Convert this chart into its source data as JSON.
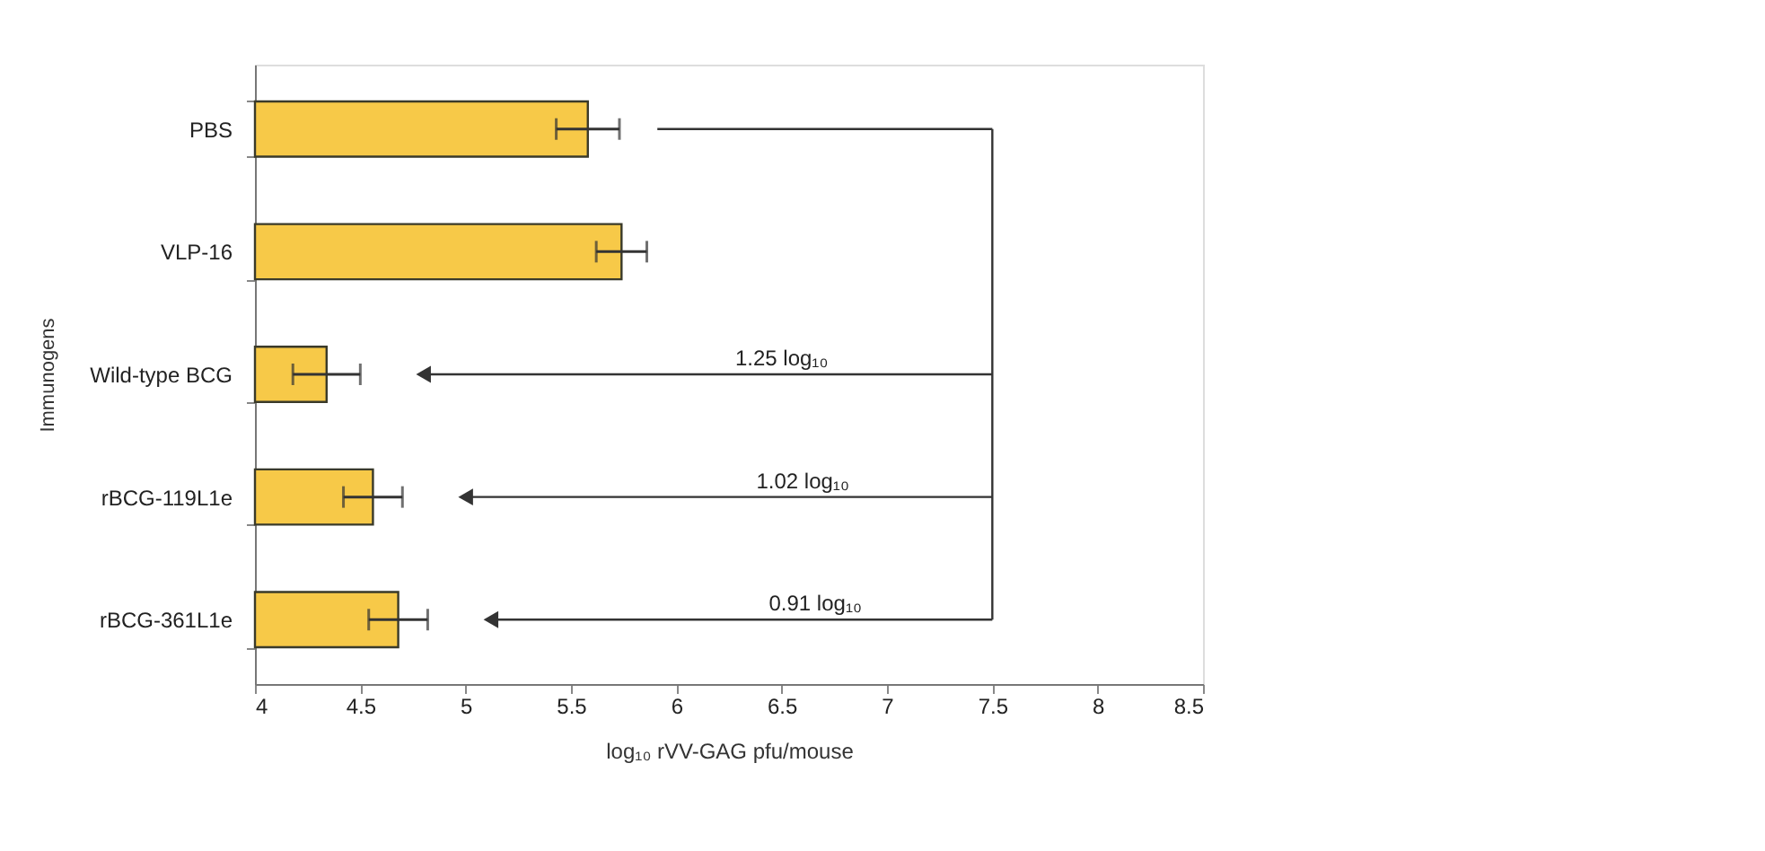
{
  "chart_data": {
    "type": "bar",
    "orientation": "horizontal",
    "categories": [
      "PBS",
      "VLP-16",
      "Wild-type BCG",
      "rBCG-119L1e",
      "rBCG-361L1e"
    ],
    "values": [
      5.58,
      5.74,
      4.34,
      4.56,
      4.68
    ],
    "errors": [
      0.15,
      0.12,
      0.16,
      0.14,
      0.14
    ],
    "color": "#f7c948",
    "xlim": [
      4,
      8.5
    ],
    "xticks": [
      4,
      4.5,
      5,
      5.5,
      6,
      6.5,
      7,
      7.5,
      8,
      8.5
    ],
    "xlabel": "log₁₀ rVV-GAG pfu/mouse",
    "ylabel": "Immunogens",
    "ref_lines": [
      {
        "axis": "x",
        "value": 7.5,
        "label": null,
        "color": "#333333"
      }
    ],
    "annotations": [
      "1.25 log₁₀",
      "1.02 log₁₀",
      "0.91 log₁₀"
    ],
    "grid": false
  }
}
